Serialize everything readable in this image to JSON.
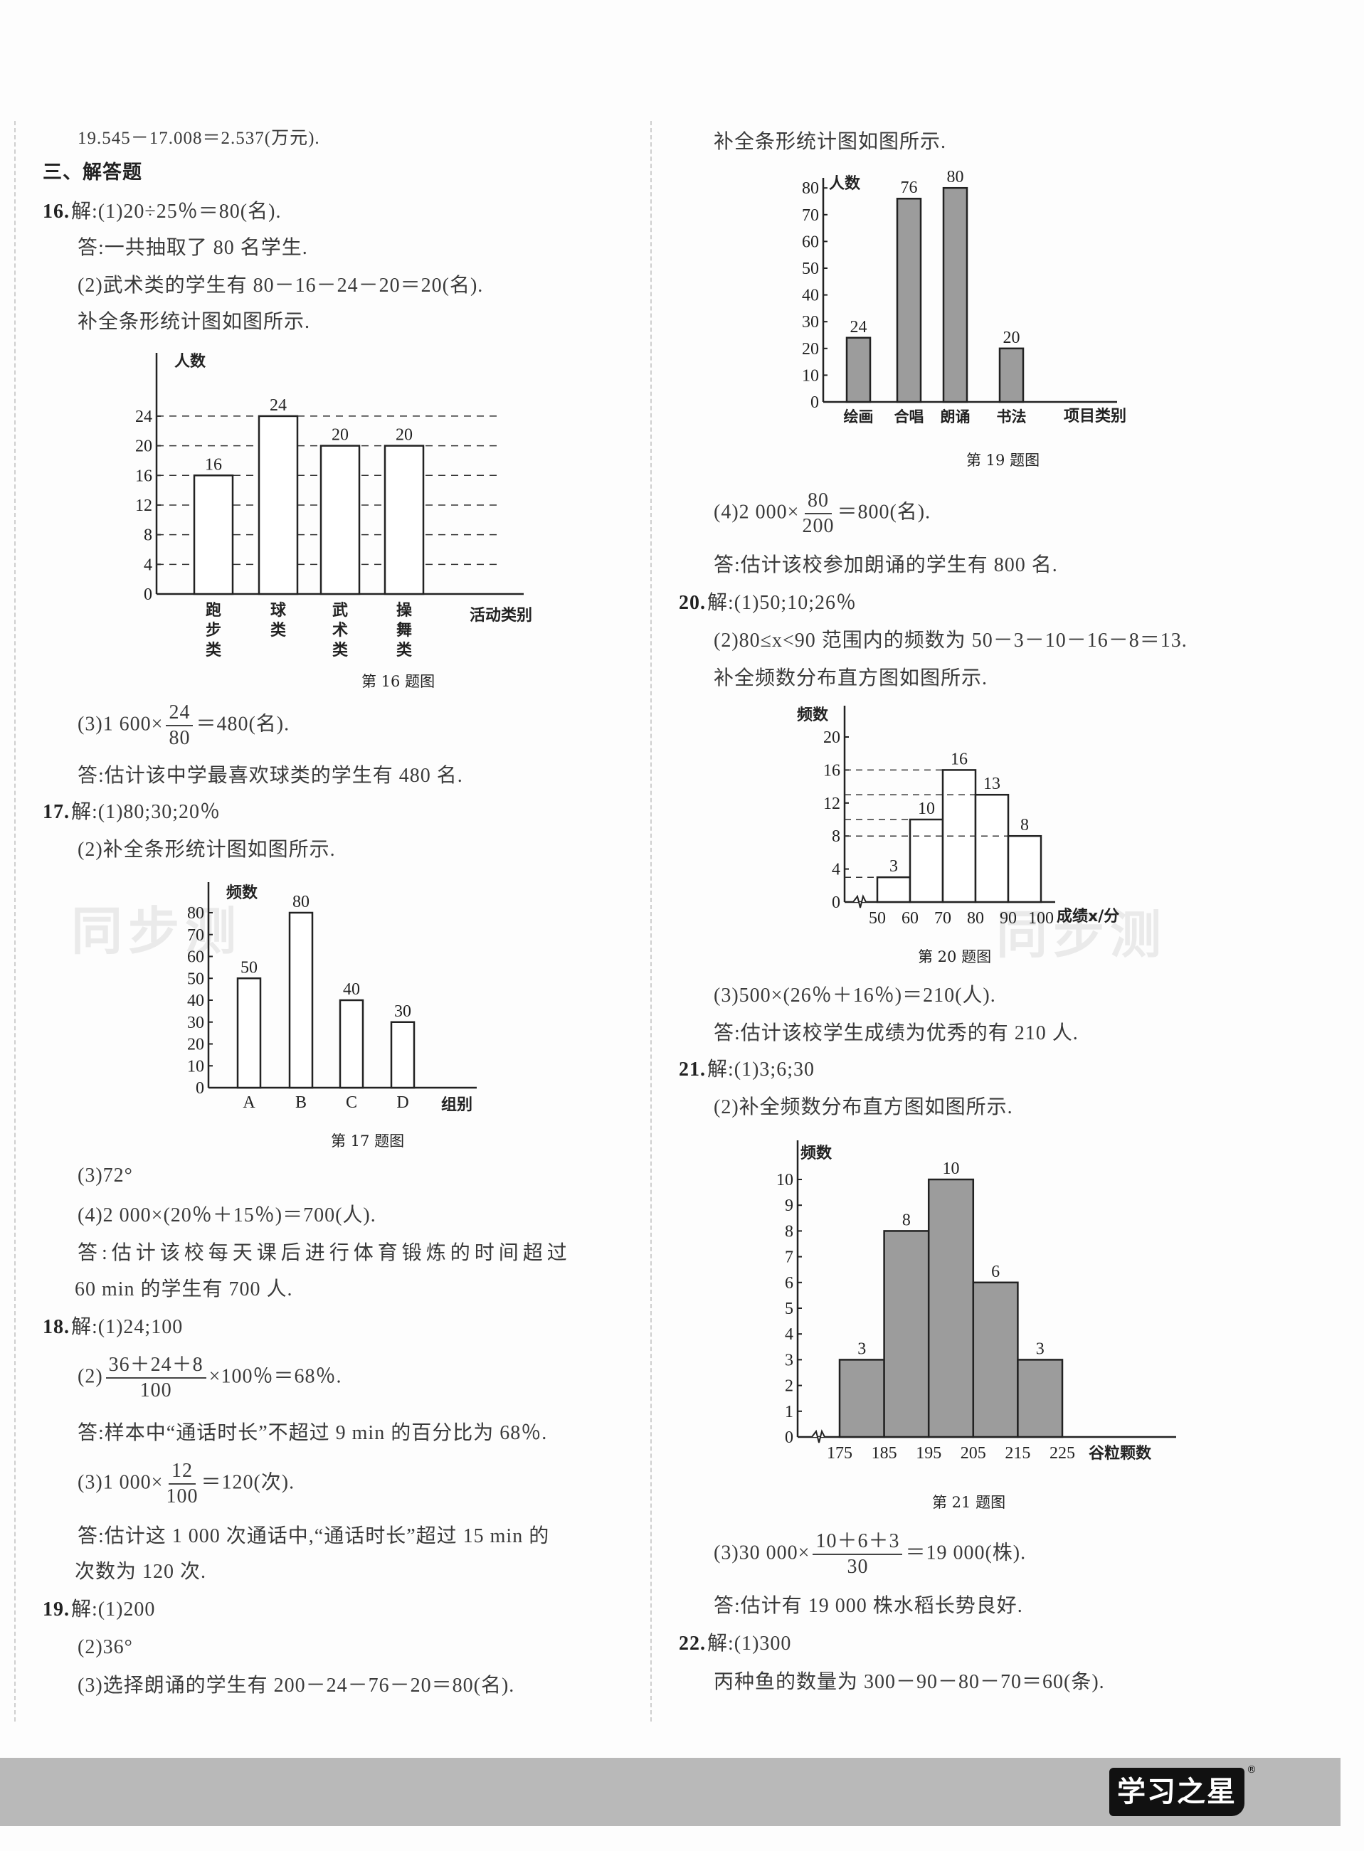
{
  "left": {
    "l0": "19.545－17.008＝2.537(万元).",
    "section": "三、解答题",
    "q16": {
      "num": "16.",
      "p1": "解:(1)20÷25％＝80(名).",
      "a1": "答:一共抽取了 80 名学生.",
      "p2": "(2)武术类的学生有 80－16－24－20＝20(名).",
      "p2b": "补全条形统计图如图所示.",
      "p3": {
        "pre": "(3)1 600×",
        "num": "24",
        "den": "80",
        "post": "＝480(名)."
      },
      "a3": "答:估计该中学最喜欢球类的学生有 480 名."
    },
    "q17": {
      "num": "17.",
      "p1": "解:(1)80;30;20％",
      "p2": "(2)补全条形统计图如图所示.",
      "p3": "(3)72°",
      "p4": "(4)2 000×(20％＋15％)＝700(人).",
      "a4a": "答:估计该校每天课后进行体育锻炼的时间超过",
      "a4b": "60 min 的学生有 700 人."
    },
    "q18": {
      "num": "18.",
      "p1": "解:(1)24;100",
      "p2": {
        "pre": "(2)",
        "num": "36＋24＋8",
        "den": "100",
        "post": "×100％＝68％."
      },
      "a2": "答:样本中“通话时长”不超过 9 min 的百分比为 68％.",
      "p3": {
        "pre": "(3)1 000×",
        "num": "12",
        "den": "100",
        "post": "＝120(次)."
      },
      "a3a": "答:估计这 1 000 次通话中,“通话时长”超过 15 min 的",
      "a3b": "次数为 120 次."
    },
    "q19": {
      "num": "19.",
      "p1": "解:(1)200",
      "p2": "(2)36°",
      "p3": "(3)选择朗诵的学生有 200－24－76－20＝80(名)."
    }
  },
  "right": {
    "r0": "补全条形统计图如图所示.",
    "q19b": {
      "p4": {
        "pre": "(4)2 000×",
        "num": "80",
        "den": "200",
        "post": "＝800(名)."
      },
      "a4": "答:估计该校参加朗诵的学生有 800 名."
    },
    "q20": {
      "num": "20.",
      "p1": "解:(1)50;10;26％",
      "p2": "(2)80≤x<90 范围内的频数为 50－3－10－16－8＝13.",
      "p2b": "补全频数分布直方图如图所示.",
      "p3": "(3)500×(26％＋16％)＝210(人).",
      "a3": "答:估计该校学生成绩为优秀的有 210 人."
    },
    "q21": {
      "num": "21.",
      "p1": "解:(1)3;6;30",
      "p2": "(2)补全频数分布直方图如图所示.",
      "p3": {
        "pre": "(3)30 000×",
        "num": "10＋6＋3",
        "den": "30",
        "post": "＝19 000(株)."
      },
      "a3": "答:估计有 19 000 株水稻长势良好."
    },
    "q22": {
      "num": "22.",
      "p1": "解:(1)300",
      "p2": "丙种鱼的数量为 300－90－80－70＝60(条)."
    }
  },
  "chart_data": [
    {
      "id": "c16",
      "type": "bar",
      "caption": "第 16 题图",
      "ylabel": "人数",
      "xlabel": "活动类别",
      "categories": [
        "跑步类",
        "球类",
        "武术类",
        "操舞类"
      ],
      "values": [
        16,
        24,
        20,
        20
      ],
      "yticks": [
        0,
        4,
        8,
        12,
        16,
        20,
        24
      ],
      "grid": "dashed",
      "fill": "#ffffff"
    },
    {
      "id": "c17",
      "type": "bar",
      "caption": "第 17 题图",
      "ylabel": "频数",
      "xlabel": "组别",
      "categories": [
        "A",
        "B",
        "C",
        "D"
      ],
      "values": [
        50,
        80,
        40,
        30
      ],
      "yticks": [
        0,
        10,
        20,
        30,
        40,
        50,
        60,
        70,
        80
      ],
      "grid": "none",
      "fill": "#ffffff"
    },
    {
      "id": "c19",
      "type": "bar",
      "caption": "第 19 题图",
      "ylabel": "人数",
      "xlabel": "项目类别",
      "categories": [
        "绘画",
        "合唱",
        "朗诵",
        "书法"
      ],
      "values": [
        24,
        76,
        80,
        20
      ],
      "yticks": [
        0,
        10,
        20,
        30,
        40,
        50,
        60,
        70,
        80
      ],
      "grid": "none",
      "fill": "#9c9c9c"
    },
    {
      "id": "c20",
      "type": "histogram",
      "caption": "第 20 题图",
      "ylabel": "频数",
      "xlabel": "成绩x/分",
      "bin_edges": [
        50,
        60,
        70,
        80,
        90,
        100
      ],
      "values": [
        3,
        10,
        16,
        13,
        8
      ],
      "yticks": [
        0,
        4,
        8,
        12,
        16,
        20
      ],
      "grid": "dashed-to-bar",
      "axis_break": true,
      "fill": "#ffffff"
    },
    {
      "id": "c21",
      "type": "histogram",
      "caption": "第 21 题图",
      "ylabel": "频数",
      "xlabel": "谷粒颗数",
      "bin_edges": [
        175,
        185,
        195,
        205,
        215,
        225
      ],
      "values": [
        3,
        8,
        10,
        6,
        3
      ],
      "yticks": [
        0,
        1,
        2,
        3,
        4,
        5,
        6,
        7,
        8,
        9,
        10
      ],
      "grid": "none",
      "axis_break": true,
      "fill": "#9c9c9c"
    }
  ],
  "footer": {
    "logo": "学习之星",
    "registered": "®"
  },
  "watermark": "同步测"
}
